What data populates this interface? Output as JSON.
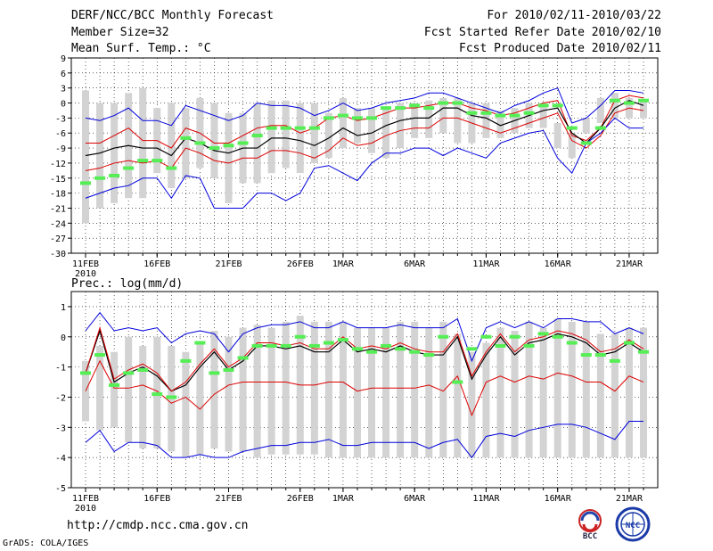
{
  "header": {
    "title": "DERF/NCC/BCC Monthly Forecast",
    "member_size": "Member Size=32",
    "variable": "Mean Surf. Temp.: °C",
    "forecast_range": "For 2010/02/11-2010/03/22",
    "start_date": "Fcst Started Refer Date 2010/02/10",
    "produced_date": "Fcst Produced Date 2010/02/11"
  },
  "footer": {
    "url": "http://cmdp.ncc.cma.gov.cn",
    "grads": "GrADS: COLA/IGES",
    "bcc_logo_text": "BCC",
    "ncc_logo_text": "NCC"
  },
  "colors": {
    "ensemble_bar": "#d3d3d3",
    "extreme_line": "#0000dd",
    "percentile_line": "#dd0000",
    "mean_line": "#000000",
    "marker": "#55ee55",
    "grid": "#000000"
  },
  "chart_data": [
    {
      "type": "line",
      "title": "Mean Surf. Temp.: °C",
      "xlabel": "",
      "ylabel": "°C",
      "ylim": [
        -30,
        9
      ],
      "yticks": [
        -30,
        -27,
        -24,
        -21,
        -18,
        -15,
        -12,
        -9,
        -6,
        -3,
        0,
        3,
        6,
        9
      ],
      "x": [
        1,
        2,
        3,
        4,
        5,
        6,
        7,
        8,
        9,
        10,
        11,
        12,
        13,
        14,
        15,
        16,
        17,
        18,
        19,
        20,
        21,
        22,
        23,
        24,
        25,
        26,
        27,
        28,
        29,
        30,
        31,
        32,
        33,
        34,
        35,
        36,
        37,
        38,
        39,
        40
      ],
      "xticks": [
        {
          "day": 1,
          "label": "11FEB"
        },
        {
          "day": 6,
          "label": "16FEB"
        },
        {
          "day": 11,
          "label": "21FEB"
        },
        {
          "day": 16,
          "label": "26FEB"
        },
        {
          "day": 19,
          "label": "1MAR"
        },
        {
          "day": 24,
          "label": "6MAR"
        },
        {
          "day": 29,
          "label": "11MAR"
        },
        {
          "day": 34,
          "label": "16MAR"
        },
        {
          "day": 39,
          "label": "21MAR"
        }
      ],
      "year_label": "2010",
      "box_high": [
        2.5,
        0,
        0,
        2,
        3,
        -1,
        0,
        -1,
        1,
        0,
        -2,
        -2,
        0,
        0.5,
        0.5,
        0,
        0,
        -2,
        1,
        -1,
        -1,
        -1,
        0,
        0,
        0.5,
        1,
        1,
        0,
        0,
        -1.5,
        -1,
        0,
        0,
        -4,
        -6,
        -3,
        1,
        2,
        1,
        0.5
      ],
      "box_low": [
        -24,
        -21,
        -20,
        -19,
        -19,
        -14,
        -17,
        -15,
        -13,
        -15,
        -20,
        -16,
        -16,
        -14,
        -13,
        -14,
        -12,
        -11,
        -9,
        -8,
        -10,
        -11,
        -9,
        -7,
        -7,
        -6,
        -8,
        -8,
        -7,
        -7,
        -6,
        -5,
        -5,
        -9,
        -11,
        -6,
        -4,
        -3,
        -3,
        -3
      ],
      "series": [
        {
          "name": "max",
          "values": [
            -3,
            -3.5,
            -2.5,
            -1,
            -3.5,
            -3.5,
            -4.5,
            -0.5,
            -1.5,
            -2.5,
            -3.5,
            -2.5,
            0,
            -0.5,
            -0.5,
            -1,
            -2.5,
            -1.5,
            0,
            -1.5,
            -1,
            0,
            0.5,
            1,
            2,
            2,
            1,
            0,
            -1,
            -2,
            -0.5,
            0.5,
            2,
            3,
            -4,
            -3,
            -0.5,
            2.5,
            2.5,
            2
          ]
        },
        {
          "name": "p_upper",
          "values": [
            -8,
            -8,
            -6.5,
            -5,
            -7.5,
            -7.5,
            -9,
            -5,
            -6,
            -8,
            -8,
            -6.5,
            -5,
            -4.5,
            -4.5,
            -6,
            -5,
            -3,
            -2.5,
            -3.5,
            -3,
            -2,
            -1,
            -1,
            -0.5,
            0,
            0,
            -1,
            -1.5,
            -2.5,
            -2,
            -1,
            0,
            0.5,
            -6.5,
            -7.5,
            -5,
            0.5,
            1.5,
            1
          ]
        },
        {
          "name": "mean",
          "values": [
            -10.5,
            -10,
            -9,
            -8.5,
            -9,
            -9,
            -10.5,
            -7,
            -8,
            -9.5,
            -10,
            -9,
            -9,
            -7,
            -7,
            -7.5,
            -8.5,
            -7,
            -5,
            -6.5,
            -6,
            -4.5,
            -3.5,
            -3,
            -3,
            -1,
            -1,
            -2.5,
            -3,
            -4.5,
            -3.5,
            -2.5,
            -1.5,
            -1,
            -6,
            -8,
            -5,
            -1,
            0.5,
            -0.5
          ]
        },
        {
          "name": "p_lower",
          "values": [
            -13.5,
            -13,
            -12,
            -11.5,
            -12,
            -11.5,
            -13,
            -9,
            -10,
            -11.5,
            -12,
            -11,
            -11,
            -9.5,
            -9.5,
            -10,
            -11,
            -9.5,
            -7,
            -8.5,
            -8,
            -6.5,
            -5.5,
            -5,
            -5,
            -3,
            -3,
            -4,
            -5,
            -6,
            -5,
            -4,
            -3,
            -2,
            -7.5,
            -9,
            -6.5,
            -2,
            -1,
            -1.5
          ]
        },
        {
          "name": "min",
          "values": [
            -19,
            -18,
            -17,
            -16.5,
            -15,
            -15,
            -19,
            -14.5,
            -15,
            -21,
            -21,
            -21,
            -18,
            -18,
            -19.5,
            -18,
            -13,
            -12.5,
            -14,
            -15.5,
            -12,
            -10,
            -10,
            -9,
            -9,
            -10.5,
            -9,
            -10,
            -11,
            -8,
            -7,
            -6,
            -5.5,
            -11,
            -14,
            -8,
            -6,
            -3,
            -5,
            -5
          ]
        },
        {
          "name": "marker",
          "values": [
            -16,
            -15,
            -14.5,
            -13,
            -11.5,
            -11.5,
            -13,
            -7,
            -8,
            -9,
            -8.5,
            -8,
            -6.5,
            -5,
            -5,
            -5,
            -5,
            -3,
            -2.5,
            -3,
            -3,
            -1,
            -1,
            -0.5,
            -1,
            0,
            0,
            -2,
            -2,
            -2.5,
            -2.5,
            -2,
            -0.5,
            -0.5,
            -5,
            -8,
            -5,
            0.5,
            0,
            0.5
          ]
        }
      ]
    },
    {
      "type": "line",
      "title": "Prec.: log(mm/d)",
      "xlabel": "",
      "ylabel": "log(mm/d)",
      "ylim": [
        -5,
        1.5
      ],
      "yticks": [
        -5,
        -4,
        -3,
        -2,
        -1,
        0,
        1
      ],
      "x": [
        1,
        2,
        3,
        4,
        5,
        6,
        7,
        8,
        9,
        10,
        11,
        12,
        13,
        14,
        15,
        16,
        17,
        18,
        19,
        20,
        21,
        22,
        23,
        24,
        25,
        26,
        27,
        28,
        29,
        30,
        31,
        32,
        33,
        34,
        35,
        36,
        37,
        38,
        39,
        40
      ],
      "xticks": [
        {
          "day": 1,
          "label": "11FEB"
        },
        {
          "day": 6,
          "label": "16FEB"
        },
        {
          "day": 11,
          "label": "21FEB"
        },
        {
          "day": 16,
          "label": "26FEB"
        },
        {
          "day": 19,
          "label": "1MAR"
        },
        {
          "day": 24,
          "label": "6MAR"
        },
        {
          "day": 29,
          "label": "11MAR"
        },
        {
          "day": 34,
          "label": "16MAR"
        },
        {
          "day": 39,
          "label": "21MAR"
        }
      ],
      "year_label": "2010",
      "box_high": [
        -0.8,
        -0.3,
        -0.5,
        0,
        -0.3,
        0,
        -0.3,
        -0.5,
        -0.2,
        0.2,
        0,
        0.3,
        0.4,
        0.3,
        0.5,
        0.7,
        0.5,
        0.5,
        0.5,
        0.3,
        0.3,
        0.3,
        0.5,
        0.5,
        0.3,
        0.5,
        0.1,
        -0.5,
        -0.2,
        0.3,
        0.2,
        0.5,
        0.3,
        0.6,
        0.5,
        0.5,
        0.1,
        0.1,
        0.3,
        0.3
      ],
      "box_low": [
        -2.8,
        -3.1,
        -3,
        -3.5,
        -3.7,
        -3.7,
        -3.8,
        -4,
        -3.9,
        -3.7,
        -3.8,
        -3.8,
        -4,
        -3.9,
        -3.9,
        -3.9,
        -3.9,
        -4,
        -4,
        -4,
        -4,
        -4,
        -4,
        -4,
        -4,
        -4,
        -4,
        -4,
        -4,
        -4,
        -4,
        -4,
        -4,
        -4,
        -4,
        -4,
        -4,
        -4,
        -4,
        -4
      ],
      "series": [
        {
          "name": "max",
          "values": [
            0.2,
            0.8,
            0.2,
            0.3,
            0.2,
            0.3,
            -0.2,
            0.1,
            0.2,
            0.1,
            -0.5,
            0.1,
            0.3,
            0.4,
            0.4,
            0.5,
            0.3,
            0.3,
            0.5,
            0.3,
            0.3,
            0.3,
            0.4,
            0.3,
            0.3,
            0.3,
            0.6,
            -0.8,
            0.3,
            0.5,
            0.3,
            0.5,
            0.3,
            0.6,
            0.6,
            0.5,
            0.5,
            0.1,
            0.3,
            0.1
          ]
        },
        {
          "name": "mean",
          "values": [
            -1.2,
            0.2,
            -1.5,
            -1.2,
            -1,
            -1.3,
            -1.8,
            -1.6,
            -1,
            -0.5,
            -1.1,
            -0.8,
            -0.3,
            -0.3,
            -0.4,
            -0.3,
            -0.5,
            -0.5,
            -0.1,
            -0.5,
            -0.4,
            -0.5,
            -0.3,
            -0.5,
            -0.6,
            -0.6,
            0,
            -1.4,
            -0.6,
            0,
            -0.6,
            -0.2,
            -0.1,
            0.1,
            0,
            -0.2,
            -0.6,
            -0.5,
            -0.2,
            -0.5
          ]
        },
        {
          "name": "p_upper",
          "values": [
            -1.2,
            0.3,
            -1.4,
            -1.1,
            -0.9,
            -1.2,
            -1.8,
            -1.5,
            -0.9,
            -0.4,
            -1,
            -0.7,
            -0.2,
            -0.2,
            -0.3,
            -0.2,
            -0.4,
            -0.4,
            0,
            -0.4,
            -0.3,
            -0.4,
            -0.2,
            -0.4,
            -0.5,
            -0.5,
            0.1,
            -1.3,
            -0.5,
            0.1,
            -0.5,
            -0.1,
            0,
            0.2,
            0.1,
            -0.1,
            -0.5,
            -0.4,
            -0.1,
            -0.4
          ]
        },
        {
          "name": "p_lower",
          "values": [
            -1.8,
            -0.8,
            -1.7,
            -1.7,
            -1.6,
            -1.8,
            -2.2,
            -2,
            -2.4,
            -1.9,
            -1.6,
            -1.5,
            -1.5,
            -1.5,
            -1.5,
            -1.6,
            -1.6,
            -1.5,
            -1.5,
            -1.8,
            -1.7,
            -1.7,
            -1.7,
            -1.7,
            -1.6,
            -1.8,
            -1.3,
            -2.6,
            -1.5,
            -1.3,
            -1.5,
            -1.3,
            -1.4,
            -1.2,
            -1.3,
            -1.5,
            -1.5,
            -1.8,
            -1.3,
            -1.5
          ]
        },
        {
          "name": "min",
          "values": [
            -3.5,
            -3.1,
            -3.8,
            -3.5,
            -3.5,
            -3.6,
            -4,
            -4,
            -3.9,
            -4,
            -4,
            -3.8,
            -3.7,
            -3.6,
            -3.6,
            -3.5,
            -3.5,
            -3.4,
            -3.6,
            -3.6,
            -3.5,
            -3.5,
            -3.5,
            -3.5,
            -3.7,
            -3.5,
            -3.4,
            -4,
            -3.3,
            -3.2,
            -3.3,
            -3.1,
            -3,
            -2.9,
            -2.9,
            -3,
            -3.2,
            -3.4,
            -2.8,
            -2.8
          ]
        },
        {
          "name": "marker",
          "values": [
            -1.2,
            -0.6,
            -1.6,
            -1.2,
            -1.1,
            -1.9,
            -2,
            -0.8,
            -0.2,
            -1.2,
            -1.1,
            -0.7,
            -0.3,
            -0.3,
            -0.3,
            0,
            -0.3,
            -0.2,
            -0.1,
            -0.4,
            -0.5,
            -0.3,
            -0.4,
            -0.5,
            -0.6,
            0,
            -1.5,
            -0.4,
            0,
            -0.3,
            0,
            -0.3,
            0.1,
            0,
            -0.2,
            -0.6,
            -0.6,
            -0.8,
            -0.2,
            -0.5
          ]
        }
      ]
    }
  ]
}
